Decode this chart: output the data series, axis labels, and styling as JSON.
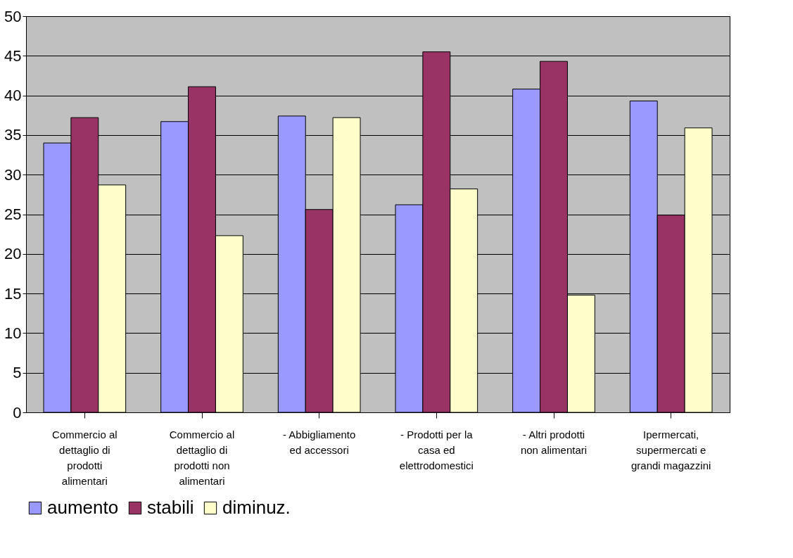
{
  "chart_data": {
    "type": "bar",
    "categories": [
      "Commercio al dettaglio di prodotti alimentari",
      "Commercio al dettaglio di prodotti non alimentari",
      "- Abbigliamento ed accessori",
      "- Prodotti per la casa ed elettrodomestici",
      "- Altri prodotti non alimentari",
      "Ipermercati, supermercati e grandi magazzini"
    ],
    "series": [
      {
        "name": "aumento",
        "color": "#9999ff",
        "values": [
          34.0,
          36.7,
          37.4,
          26.2,
          40.8,
          39.3
        ]
      },
      {
        "name": "stabili",
        "color": "#993366",
        "values": [
          37.2,
          41.1,
          25.6,
          45.5,
          44.3,
          24.9
        ]
      },
      {
        "name": "diminuz.",
        "color": "#ffffcc",
        "values": [
          28.7,
          22.3,
          37.2,
          28.2,
          14.8,
          35.9
        ]
      }
    ],
    "ylim": [
      0,
      50
    ],
    "yticks": [
      0,
      5,
      10,
      15,
      20,
      25,
      30,
      35,
      40,
      45,
      50
    ],
    "grid": "y",
    "legend": "bottom"
  }
}
